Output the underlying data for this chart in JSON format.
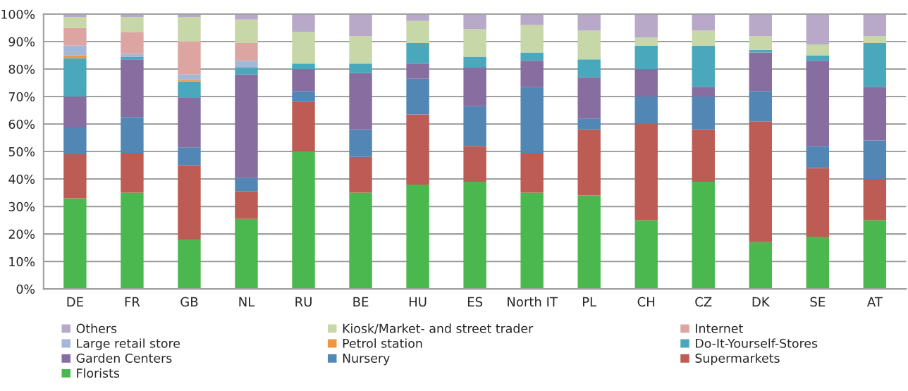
{
  "chart_data": {
    "type": "bar",
    "stacked": true,
    "categories": [
      "DE",
      "FR",
      "GB",
      "NL",
      "RU",
      "BE",
      "HU",
      "ES",
      "North IT",
      "PL",
      "CH",
      "CZ",
      "DK",
      "SE",
      "AT"
    ],
    "series": [
      {
        "name": "Florists",
        "color": "#4bb84f",
        "values": [
          33,
          35,
          18,
          25.5,
          50,
          35,
          38,
          39,
          35,
          34,
          25,
          39,
          17,
          19,
          25
        ]
      },
      {
        "name": "Supermarkets",
        "color": "#bc5c54",
        "values": [
          16,
          14.5,
          27,
          10,
          18,
          13,
          25.5,
          13,
          14.5,
          24,
          35,
          19,
          44,
          25,
          15
        ]
      },
      {
        "name": "Nursery",
        "color": "#5286b5",
        "values": [
          10,
          13,
          6.5,
          5,
          4,
          10,
          13,
          14.5,
          24,
          4,
          10,
          12,
          11,
          8,
          14
        ]
      },
      {
        "name": "Garden Centers",
        "color": "#876da0",
        "values": [
          11,
          21,
          18,
          37.5,
          8,
          20.5,
          5.5,
          14,
          9.5,
          15,
          10,
          3.5,
          14,
          31,
          19.5
        ]
      },
      {
        "name": "Do-It-Yourself-Stores",
        "color": "#4aa8bc",
        "values": [
          14,
          1,
          6,
          2.5,
          2,
          3.5,
          7.5,
          4,
          3,
          6.5,
          8.5,
          15,
          1,
          2,
          16
        ]
      },
      {
        "name": "Petrol station",
        "color": "#ef9645",
        "values": [
          1,
          0,
          0.5,
          0,
          0,
          0,
          0,
          0,
          0,
          0,
          0,
          0,
          0,
          0,
          0
        ]
      },
      {
        "name": "Large retail store",
        "color": "#a3b7d8",
        "values": [
          3.5,
          1,
          2,
          2.5,
          0,
          0,
          0,
          0,
          0,
          0,
          0,
          0,
          0,
          0,
          0
        ]
      },
      {
        "name": "Internet",
        "color": "#dda5a2",
        "values": [
          6.5,
          8,
          12,
          6.5,
          0,
          0,
          0,
          0,
          0,
          0,
          0,
          0,
          0,
          0,
          0
        ]
      },
      {
        "name": "Kiosk/Market- and street trader",
        "color": "#c7d7a8",
        "values": [
          4,
          5.5,
          9,
          8.5,
          11.5,
          10,
          8,
          10,
          10,
          10.5,
          3,
          5.5,
          5,
          4,
          2.5
        ]
      },
      {
        "name": "Others",
        "color": "#b8a9c9",
        "values": [
          1,
          1,
          1,
          2,
          6.5,
          8,
          2.5,
          5.5,
          4,
          6,
          8.5,
          6,
          8,
          11,
          8
        ]
      }
    ],
    "ylim": [
      0,
      100
    ],
    "yticks": [
      {
        "value": 0,
        "label": "0%"
      },
      {
        "value": 10,
        "label": "10%"
      },
      {
        "value": 20,
        "label": "20%"
      },
      {
        "value": 30,
        "label": "30%"
      },
      {
        "value": 40,
        "label": "40%"
      },
      {
        "value": 50,
        "label": "50%"
      },
      {
        "value": 60,
        "label": "60%"
      },
      {
        "value": 70,
        "label": "70%"
      },
      {
        "value": 80,
        "label": "80%"
      },
      {
        "value": 90,
        "label": "90%"
      },
      {
        "value": 100,
        "label": "100%"
      }
    ],
    "grid": "y",
    "legend": "bottom"
  }
}
